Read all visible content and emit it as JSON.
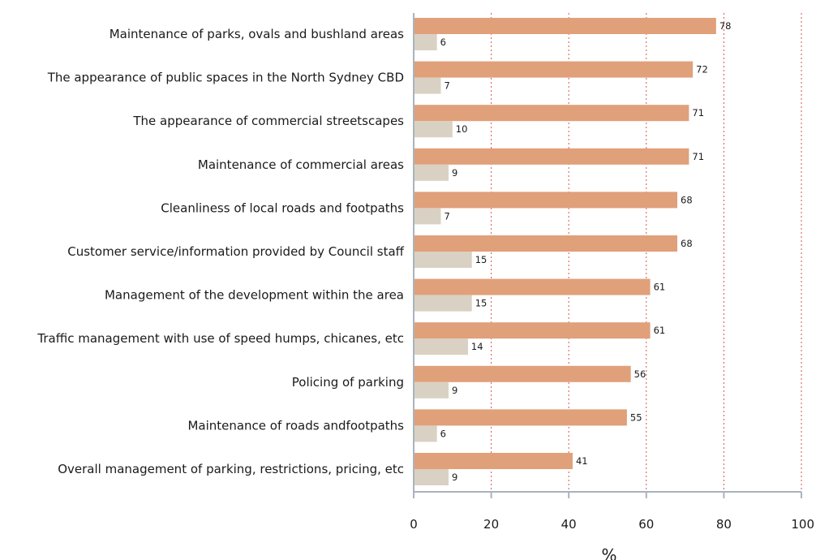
{
  "chart_data": {
    "type": "bar",
    "orientation": "horizontal",
    "categories": [
      "Maintenance of parks, ovals and bushland areas",
      "The appearance of public spaces in the North Sydney CBD",
      "The appearance of commercial streetscapes",
      "Maintenance of commercial areas",
      "Cleanliness of local roads and footpaths",
      "Customer service/information provided by Council staff",
      "Management of the development within the area",
      "Traffic management with use of speed humps, chicanes, etc",
      "Policing of parking",
      "Maintenance of roads andfootpaths",
      "Overall management of parking, restrictions, pricing, etc"
    ],
    "series": [
      {
        "values": [
          78,
          72,
          71,
          71,
          68,
          68,
          61,
          61,
          56,
          55,
          41
        ],
        "color": "#e0a07a"
      },
      {
        "values": [
          6,
          7,
          10,
          9,
          7,
          15,
          15,
          14,
          9,
          6,
          9
        ],
        "color": "#d9d1c3"
      }
    ],
    "xlim": [
      0,
      100
    ],
    "xticks": [
      "0",
      "20",
      "40",
      "60",
      "80",
      "100"
    ],
    "xlabel": "%",
    "ylabel": "",
    "title": "",
    "grid": "vertical dotted",
    "grid_color": "#d9534f",
    "axis_color": "#a8b4bd"
  }
}
